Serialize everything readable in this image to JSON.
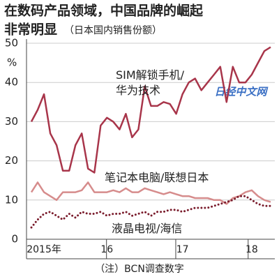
{
  "chart_data": {
    "type": "line",
    "title": "在数码产品领域，中国品牌的崛起",
    "title_line2": "非常明显",
    "subtitle": "（日本国内销售份额）",
    "y_label": "%",
    "note": "（注）BCN调查数字",
    "watermark": "日经中文网",
    "categories": [
      null,
      null,
      "2015年",
      null,
      null,
      null,
      null,
      null,
      null,
      null,
      null,
      null,
      "16",
      null,
      null,
      null,
      null,
      null,
      null,
      null,
      null,
      null,
      null,
      null,
      "17",
      null,
      null,
      null,
      null,
      null,
      null,
      null,
      null,
      null,
      null,
      "18",
      null,
      null,
      null
    ],
    "series": [
      {
        "name": "SIM解锁手机/华为技术",
        "color": "#a8354a",
        "dash": false,
        "values": [
          30,
          33,
          37,
          27,
          24,
          17.5,
          17.5,
          24,
          27,
          18,
          17,
          29,
          31,
          30,
          28,
          32,
          26,
          28,
          39,
          34,
          34,
          35,
          34.5,
          32,
          37,
          40,
          41,
          38,
          40,
          42,
          44,
          35,
          44,
          40,
          40,
          42,
          45,
          48,
          49
        ]
      },
      {
        "name": "笔记本电脑/联想日本",
        "color": "#d68c8c",
        "dash": false,
        "values": [
          12,
          14.5,
          12,
          11,
          10,
          12,
          12,
          12,
          12.5,
          14.5,
          12,
          12,
          12,
          12.5,
          12,
          13,
          12,
          12,
          13,
          12.5,
          12,
          11.5,
          12,
          11.5,
          11,
          11,
          10.5,
          10.5,
          10.5,
          10,
          10,
          9,
          10.5,
          11,
          12,
          12.5,
          11,
          10,
          9.5
        ]
      },
      {
        "name": "液晶电视/海信",
        "color": "#7a1c2c",
        "dash": true,
        "values": [
          3,
          5,
          6.5,
          7,
          6,
          5,
          6.5,
          5.5,
          7,
          6.5,
          6.5,
          7,
          6,
          6.5,
          6.5,
          7,
          6,
          6.5,
          7,
          6,
          7,
          7,
          7.5,
          7.5,
          7,
          7.5,
          8,
          8,
          8,
          8.5,
          9,
          9.5,
          10,
          11,
          11,
          10,
          9,
          8.5,
          8.5
        ]
      }
    ],
    "ylim": [
      0,
      50
    ],
    "yticks": [
      0,
      10,
      20,
      30,
      40,
      50
    ],
    "grid": true
  }
}
